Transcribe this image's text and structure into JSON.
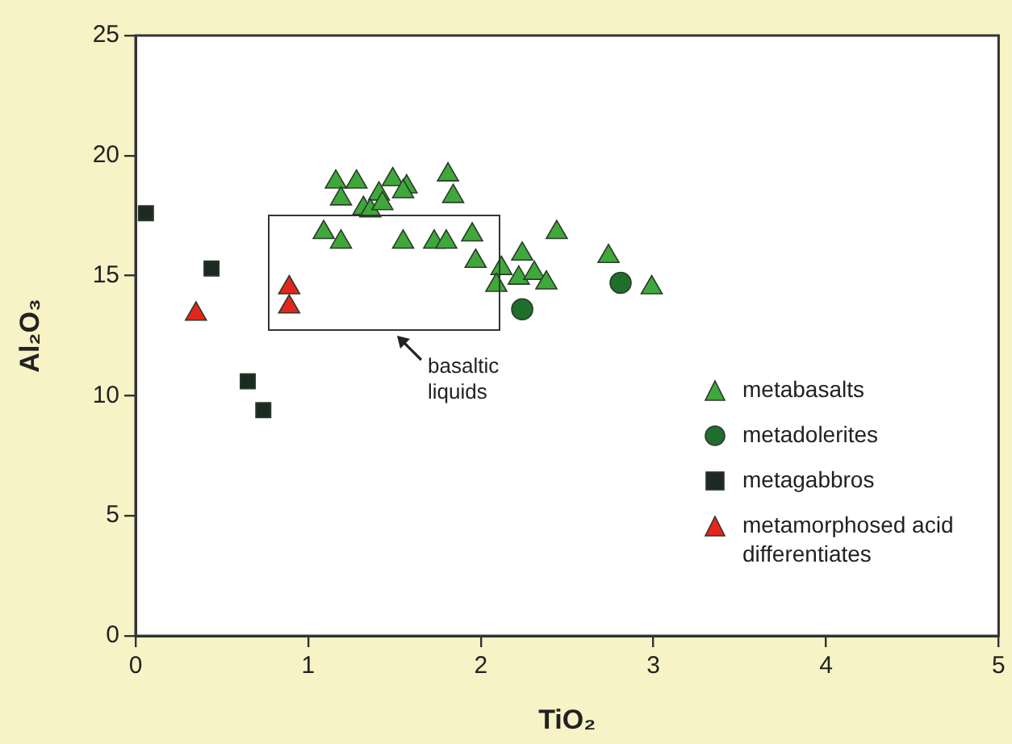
{
  "chart_data": {
    "type": "scatter",
    "xlabel": "TiO₂",
    "ylabel": "Al₂O₃",
    "xlim": [
      0,
      5
    ],
    "ylim": [
      0,
      25
    ],
    "xticks": [
      0,
      1,
      2,
      3,
      4,
      5
    ],
    "yticks": [
      0,
      5,
      10,
      15,
      20,
      25
    ],
    "grid": false,
    "legend": "bottom right",
    "series": [
      {
        "name": "metabasalts",
        "type": "scatter",
        "marker": "triangle",
        "color": "#3fa83a",
        "x": [
          1.16,
          1.28,
          1.49,
          1.57,
          1.55,
          1.81,
          1.84,
          1.19,
          1.41,
          1.32,
          1.36,
          1.43,
          1.09,
          1.19,
          1.55,
          1.73,
          1.8,
          1.95,
          1.97,
          2.12,
          2.09,
          2.24,
          2.22,
          2.31,
          2.38,
          2.44,
          2.74,
          2.99
        ],
        "values": [
          18.9,
          18.9,
          19.0,
          18.7,
          18.5,
          19.2,
          18.3,
          18.2,
          18.4,
          17.8,
          17.7,
          18.0,
          16.8,
          16.4,
          16.4,
          16.4,
          16.4,
          16.7,
          15.6,
          15.3,
          14.6,
          15.9,
          14.9,
          15.1,
          14.7,
          16.8,
          15.8,
          14.5
        ]
      },
      {
        "name": "metadolerites",
        "type": "scatter",
        "marker": "circle",
        "color": "#1f6e2c",
        "x": [
          2.81,
          2.24
        ],
        "values": [
          14.7,
          13.6
        ]
      },
      {
        "name": "metagabbros",
        "type": "scatter",
        "marker": "square",
        "color": "#1b2a22",
        "x": [
          0.06,
          0.44,
          0.65,
          0.74
        ],
        "values": [
          17.6,
          15.3,
          10.6,
          9.4
        ]
      },
      {
        "name": "metamorphosed acid differentiates",
        "type": "scatter",
        "marker": "triangle",
        "color": "#e3261b",
        "x": [
          0.35,
          0.89,
          0.89
        ],
        "values": [
          13.4,
          14.5,
          13.7
        ]
      }
    ],
    "annotations": [
      "basaltic liquids"
    ]
  }
}
